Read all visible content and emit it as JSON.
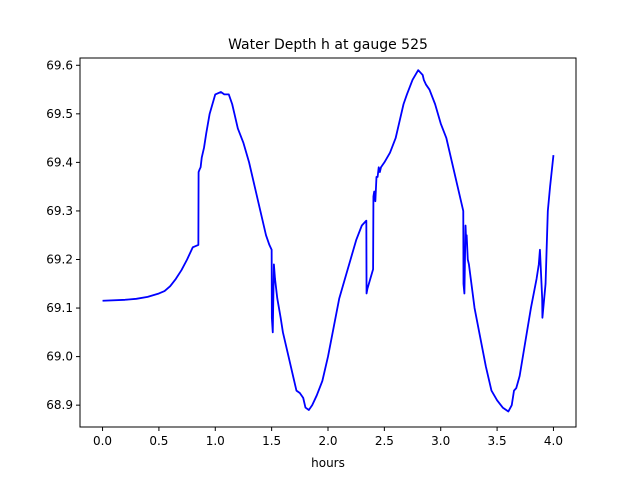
{
  "chart_data": {
    "type": "line",
    "title": "Water Depth h at gauge 525",
    "xlabel": "hours",
    "ylabel": "",
    "xlim": [
      -0.2,
      4.2
    ],
    "ylim": [
      68.855,
      69.615
    ],
    "xticks": [
      {
        "value": 0.0,
        "label": "0.0"
      },
      {
        "value": 0.5,
        "label": "0.5"
      },
      {
        "value": 1.0,
        "label": "1.0"
      },
      {
        "value": 1.5,
        "label": "1.5"
      },
      {
        "value": 2.0,
        "label": "2.0"
      },
      {
        "value": 2.5,
        "label": "2.5"
      },
      {
        "value": 3.0,
        "label": "3.0"
      },
      {
        "value": 3.5,
        "label": "3.5"
      },
      {
        "value": 4.0,
        "label": "4.0"
      }
    ],
    "yticks": [
      {
        "value": 68.9,
        "label": "68.9"
      },
      {
        "value": 69.0,
        "label": "69.0"
      },
      {
        "value": 69.1,
        "label": "69.1"
      },
      {
        "value": 69.2,
        "label": "69.2"
      },
      {
        "value": 69.3,
        "label": "69.3"
      },
      {
        "value": 69.4,
        "label": "69.4"
      },
      {
        "value": 69.5,
        "label": "69.5"
      },
      {
        "value": 69.6,
        "label": "69.6"
      }
    ],
    "grid": false,
    "series": [
      {
        "color": "#0000ff",
        "x": [
          0.0,
          0.2,
          0.3,
          0.4,
          0.5,
          0.55,
          0.6,
          0.65,
          0.7,
          0.75,
          0.8,
          0.85,
          0.852,
          0.86,
          0.87,
          0.88,
          0.89,
          0.9,
          0.92,
          0.95,
          1.0,
          1.05,
          1.08,
          1.12,
          1.15,
          1.17,
          1.2,
          1.25,
          1.3,
          1.35,
          1.4,
          1.45,
          1.48,
          1.5,
          1.502,
          1.51,
          1.52,
          1.53,
          1.55,
          1.58,
          1.6,
          1.65,
          1.7,
          1.72,
          1.75,
          1.78,
          1.8,
          1.83,
          1.86,
          1.9,
          1.95,
          2.0,
          2.05,
          2.1,
          2.15,
          2.2,
          2.25,
          2.3,
          2.34,
          2.342,
          2.35,
          2.4,
          2.403,
          2.41,
          2.42,
          2.43,
          2.44,
          2.45,
          2.46,
          2.47,
          2.5,
          2.55,
          2.6,
          2.63,
          2.67,
          2.7,
          2.75,
          2.8,
          2.82,
          2.84,
          2.85,
          2.87,
          2.9,
          2.95,
          3.0,
          3.05,
          3.1,
          3.15,
          3.2,
          3.202,
          3.21,
          3.22,
          3.225,
          3.23,
          3.24,
          3.25,
          3.3,
          3.35,
          3.4,
          3.45,
          3.5,
          3.55,
          3.6,
          3.63,
          3.65,
          3.67,
          3.7,
          3.75,
          3.8,
          3.85,
          3.87,
          3.88,
          3.9,
          3.902,
          3.91,
          3.93,
          3.95,
          3.97,
          4.0
        ],
        "y": [
          69.115,
          69.117,
          69.119,
          69.123,
          69.13,
          69.135,
          69.145,
          69.16,
          69.178,
          69.2,
          69.225,
          69.23,
          69.38,
          69.385,
          69.39,
          69.41,
          69.42,
          69.43,
          69.46,
          69.5,
          69.54,
          69.545,
          69.54,
          69.54,
          69.52,
          69.5,
          69.47,
          69.44,
          69.4,
          69.35,
          69.3,
          69.25,
          69.23,
          69.22,
          69.08,
          69.05,
          69.19,
          69.16,
          69.12,
          69.08,
          69.05,
          69.0,
          68.95,
          68.93,
          68.925,
          68.915,
          68.895,
          68.89,
          68.9,
          68.92,
          68.95,
          69.0,
          69.06,
          69.12,
          69.16,
          69.2,
          69.24,
          69.27,
          69.28,
          69.13,
          69.14,
          69.18,
          69.33,
          69.34,
          69.32,
          69.37,
          69.37,
          69.39,
          69.38,
          69.39,
          69.4,
          69.42,
          69.45,
          69.48,
          69.52,
          69.54,
          69.57,
          69.59,
          69.585,
          69.58,
          69.57,
          69.56,
          69.55,
          69.52,
          69.48,
          69.45,
          69.4,
          69.35,
          69.3,
          69.15,
          69.13,
          69.27,
          69.24,
          69.25,
          69.2,
          69.19,
          69.1,
          69.04,
          68.98,
          68.93,
          68.91,
          68.895,
          68.887,
          68.9,
          68.93,
          68.935,
          68.96,
          69.03,
          69.1,
          69.16,
          69.19,
          69.22,
          69.12,
          69.08,
          69.1,
          69.15,
          69.3,
          69.35,
          69.415
        ]
      }
    ]
  }
}
